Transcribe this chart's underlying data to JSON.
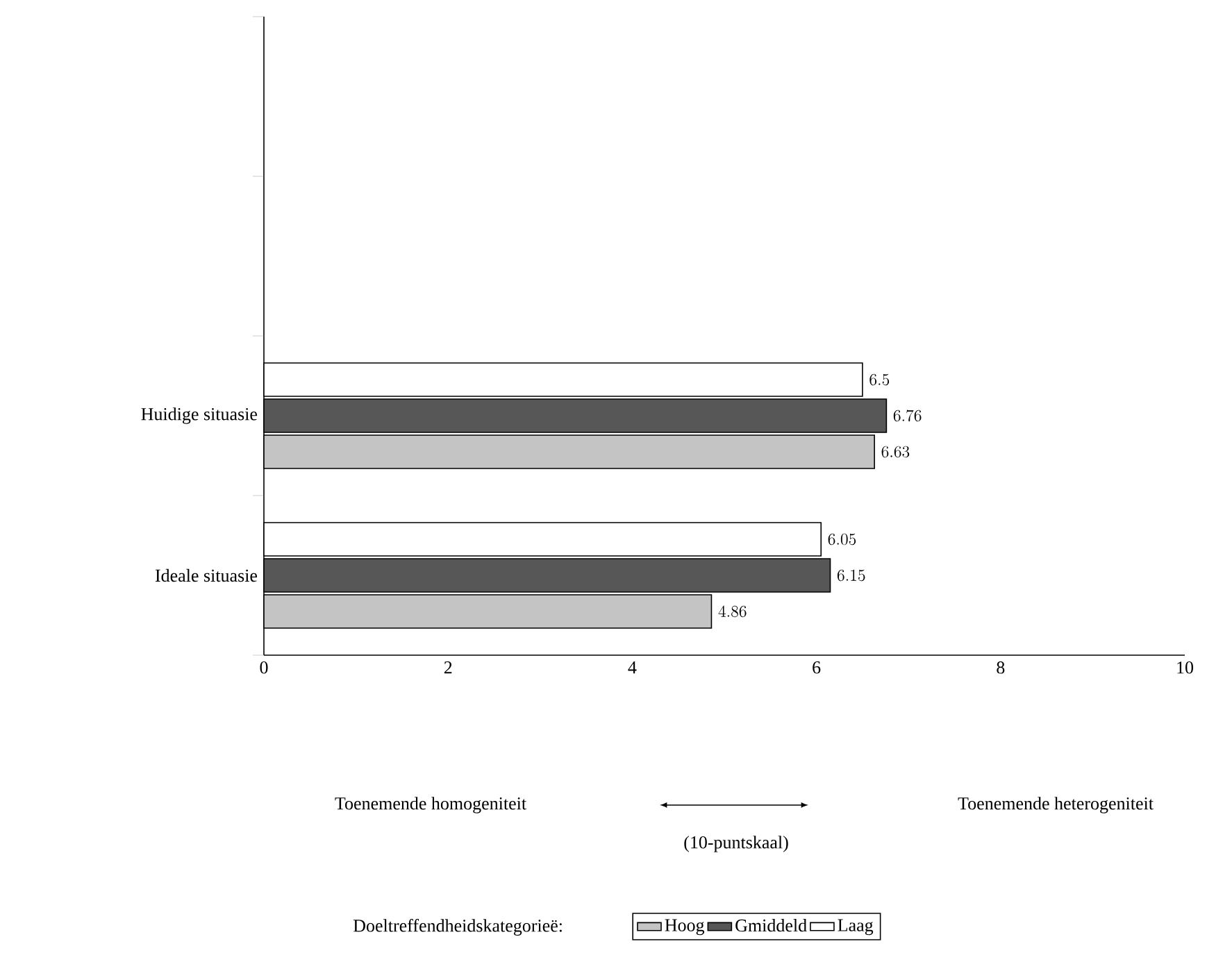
{
  "chart_data": {
    "type": "bar",
    "orientation": "horizontal",
    "categories": [
      null,
      null,
      "Huidige situasie",
      "Ideale situasie"
    ],
    "series": [
      {
        "name": "Hoog",
        "color": "#c4c4c4",
        "values": [
          null,
          null,
          6.63,
          4.86
        ]
      },
      {
        "name": "Gmiddeld",
        "color": "#575757",
        "values": [
          null,
          null,
          6.76,
          6.15
        ]
      },
      {
        "name": "Laag",
        "color": "#ffffff",
        "values": [
          null,
          null,
          6.5,
          6.05
        ]
      }
    ],
    "xlim": [
      0,
      10
    ],
    "xticks": [
      0,
      2,
      4,
      6,
      8,
      10
    ],
    "annotations": [
      "Toenemende homogeniteit",
      "Toenemende heterogeniteit",
      "(10-puntskaal)"
    ],
    "legend_title": "Doeltreffendheidskategorieë:",
    "legend": "bottom",
    "data_labels": true,
    "grid": false
  }
}
